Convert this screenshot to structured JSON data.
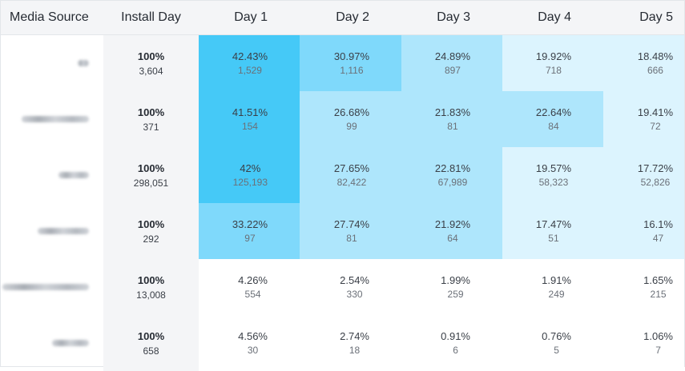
{
  "headers": {
    "media_source": "Media Source",
    "install_day": "Install Day",
    "days": [
      "Day 1",
      "Day 2",
      "Day 3",
      "Day 4",
      "Day 5"
    ]
  },
  "colors": {
    "level4": "#45c9f7",
    "level3": "#7fd9fb",
    "level2": "#aee6fc",
    "level1": "#dcf4fe",
    "level0": "#ffffff",
    "header_bg": "#f4f5f7"
  },
  "rows": [
    {
      "install": {
        "pct": "100%",
        "count": "3,604"
      },
      "days": [
        {
          "pct": "42.43%",
          "count": "1,529",
          "level": 4
        },
        {
          "pct": "30.97%",
          "count": "1,116",
          "level": 3
        },
        {
          "pct": "24.89%",
          "count": "897",
          "level": 2
        },
        {
          "pct": "19.92%",
          "count": "718",
          "level": 1
        },
        {
          "pct": "18.48%",
          "count": "666",
          "level": 1
        }
      ]
    },
    {
      "install": {
        "pct": "100%",
        "count": "371"
      },
      "days": [
        {
          "pct": "41.51%",
          "count": "154",
          "level": 4
        },
        {
          "pct": "26.68%",
          "count": "99",
          "level": 2
        },
        {
          "pct": "21.83%",
          "count": "81",
          "level": 2
        },
        {
          "pct": "22.64%",
          "count": "84",
          "level": 2
        },
        {
          "pct": "19.41%",
          "count": "72",
          "level": 1
        }
      ]
    },
    {
      "install": {
        "pct": "100%",
        "count": "298,051"
      },
      "days": [
        {
          "pct": "42%",
          "count": "125,193",
          "level": 4
        },
        {
          "pct": "27.65%",
          "count": "82,422",
          "level": 2
        },
        {
          "pct": "22.81%",
          "count": "67,989",
          "level": 2
        },
        {
          "pct": "19.57%",
          "count": "58,323",
          "level": 1
        },
        {
          "pct": "17.72%",
          "count": "52,826",
          "level": 1
        }
      ]
    },
    {
      "install": {
        "pct": "100%",
        "count": "292"
      },
      "days": [
        {
          "pct": "33.22%",
          "count": "97",
          "level": 3
        },
        {
          "pct": "27.74%",
          "count": "81",
          "level": 2
        },
        {
          "pct": "21.92%",
          "count": "64",
          "level": 2
        },
        {
          "pct": "17.47%",
          "count": "51",
          "level": 1
        },
        {
          "pct": "16.1%",
          "count": "47",
          "level": 1
        }
      ]
    },
    {
      "install": {
        "pct": "100%",
        "count": "13,008"
      },
      "days": [
        {
          "pct": "4.26%",
          "count": "554",
          "level": 0
        },
        {
          "pct": "2.54%",
          "count": "330",
          "level": 0
        },
        {
          "pct": "1.99%",
          "count": "259",
          "level": 0
        },
        {
          "pct": "1.91%",
          "count": "249",
          "level": 0
        },
        {
          "pct": "1.65%",
          "count": "215",
          "level": 0
        }
      ]
    },
    {
      "install": {
        "pct": "100%",
        "count": "658"
      },
      "days": [
        {
          "pct": "4.56%",
          "count": "30",
          "level": 0
        },
        {
          "pct": "2.74%",
          "count": "18",
          "level": 0
        },
        {
          "pct": "0.91%",
          "count": "6",
          "level": 0
        },
        {
          "pct": "0.76%",
          "count": "5",
          "level": 0
        },
        {
          "pct": "1.06%",
          "count": "7",
          "level": 0
        }
      ]
    }
  ]
}
